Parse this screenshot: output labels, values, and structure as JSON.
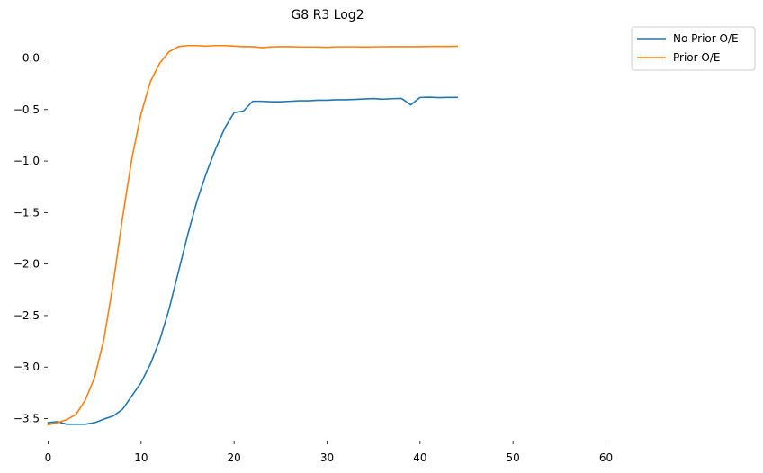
{
  "chart_data": {
    "type": "line",
    "title": "G8 R3 Log2",
    "xlabel": "",
    "ylabel": "",
    "xlim": [
      0,
      70
    ],
    "ylim": [
      -3.72,
      0.34
    ],
    "x_ticks": [
      0,
      10,
      20,
      30,
      40,
      50,
      60
    ],
    "y_ticks": [
      0.0,
      -0.5,
      -1.0,
      -1.5,
      -2.0,
      -2.5,
      -3.0,
      -3.5
    ],
    "y_tick_labels": [
      "0.0",
      "−0.5",
      "−1.0",
      "−1.5",
      "−2.0",
      "−2.5",
      "−3.0",
      "−3.5"
    ],
    "grid": false,
    "legend_position": "outside top-right",
    "x": [
      0,
      1,
      2,
      3,
      4,
      5,
      6,
      7,
      8,
      9,
      10,
      11,
      12,
      13,
      14,
      15,
      16,
      17,
      18,
      19,
      20,
      21,
      22,
      23,
      24,
      25,
      26,
      27,
      28,
      29,
      30,
      31,
      32,
      33,
      34,
      35,
      36,
      37,
      38,
      39,
      40,
      41,
      42,
      43,
      44
    ],
    "series": [
      {
        "name": "No Prior O/E",
        "color": "#1f77b4",
        "values": [
          -3.54,
          -3.53,
          -3.555,
          -3.555,
          -3.555,
          -3.54,
          -3.505,
          -3.475,
          -3.41,
          -3.28,
          -3.15,
          -2.97,
          -2.74,
          -2.44,
          -2.08,
          -1.72,
          -1.39,
          -1.12,
          -0.885,
          -0.68,
          -0.53,
          -0.515,
          -0.42,
          -0.42,
          -0.425,
          -0.425,
          -0.42,
          -0.415,
          -0.415,
          -0.41,
          -0.41,
          -0.405,
          -0.405,
          -0.402,
          -0.398,
          -0.393,
          -0.4,
          -0.395,
          -0.392,
          -0.455,
          -0.383,
          -0.38,
          -0.385,
          -0.382,
          -0.382
        ]
      },
      {
        "name": "Prior O/E",
        "color": "#ff7f0e",
        "values": [
          -3.56,
          -3.54,
          -3.51,
          -3.46,
          -3.32,
          -3.1,
          -2.73,
          -2.19,
          -1.55,
          -0.98,
          -0.54,
          -0.23,
          -0.05,
          0.06,
          0.11,
          0.12,
          0.12,
          0.115,
          0.12,
          0.12,
          0.115,
          0.11,
          0.11,
          0.1,
          0.108,
          0.11,
          0.11,
          0.107,
          0.107,
          0.107,
          0.103,
          0.108,
          0.108,
          0.108,
          0.106,
          0.108,
          0.109,
          0.11,
          0.11,
          0.11,
          0.11,
          0.112,
          0.112,
          0.112,
          0.114
        ]
      }
    ]
  }
}
